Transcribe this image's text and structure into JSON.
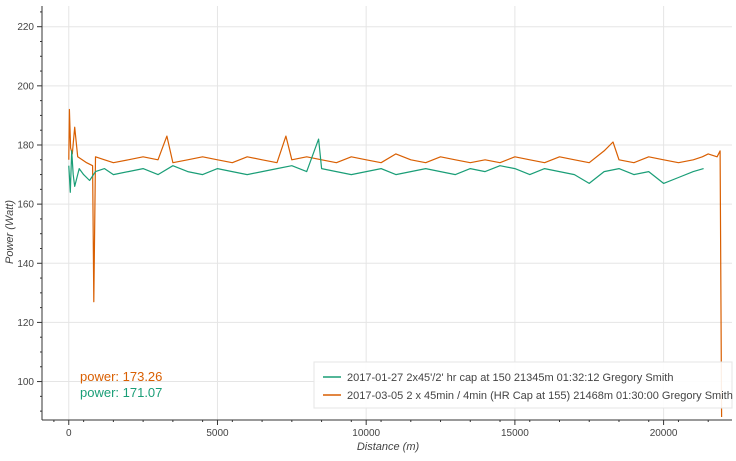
{
  "chart_data": {
    "type": "line",
    "xlabel": "Distance (m)",
    "ylabel": "Power (Watt)",
    "xlim": [
      -900,
      22300
    ],
    "ylim": [
      87,
      227
    ],
    "x_ticks": [
      0,
      5000,
      10000,
      15000,
      20000
    ],
    "y_ticks": [
      100,
      120,
      140,
      160,
      180,
      200,
      220
    ],
    "grid": true,
    "legend_position": "bottom-right",
    "series": [
      {
        "name": "2017-01-27 2x45'/2' hr cap at 150 21345m 01:32:12 Gregory Smith",
        "color": "#1a9e77",
        "x": [
          0,
          50,
          100,
          150,
          200,
          350,
          500,
          700,
          900,
          1200,
          1500,
          2000,
          2500,
          3000,
          3500,
          4000,
          4500,
          5000,
          5500,
          6000,
          6500,
          7000,
          7500,
          8000,
          8400,
          8500,
          9000,
          9500,
          10000,
          10500,
          11000,
          11500,
          12000,
          12500,
          13000,
          13500,
          14000,
          14500,
          15000,
          15500,
          16000,
          16500,
          17000,
          17500,
          18000,
          18500,
          19000,
          19500,
          20000,
          20500,
          21000,
          21345
        ],
        "y": [
          173,
          164,
          178,
          170,
          166,
          172,
          170,
          168,
          171,
          172,
          170,
          171,
          172,
          170,
          173,
          171,
          170,
          172,
          171,
          170,
          171,
          172,
          173,
          171,
          182,
          172,
          171,
          170,
          171,
          172,
          170,
          171,
          172,
          171,
          170,
          172,
          171,
          173,
          172,
          170,
          172,
          171,
          170,
          167,
          171,
          172,
          170,
          171,
          167,
          169,
          171,
          172
        ],
        "mean": 171.07,
        "stat_label": "power: 171.07"
      },
      {
        "name": "2017-03-05 2 x 45min / 4min (HR Cap at 155) 21468m 01:30:00 Gregory Smith",
        "color": "#d95f02",
        "x": [
          0,
          20,
          60,
          120,
          200,
          300,
          450,
          600,
          800,
          840,
          900,
          1200,
          1500,
          2000,
          2500,
          3000,
          3300,
          3500,
          4000,
          4500,
          5000,
          5500,
          6000,
          6500,
          7000,
          7300,
          7500,
          8000,
          8500,
          9000,
          9500,
          10000,
          10500,
          11000,
          11500,
          12000,
          12500,
          13000,
          13500,
          14000,
          14500,
          15000,
          15500,
          16000,
          16500,
          17000,
          17500,
          18000,
          18300,
          18500,
          19000,
          19500,
          20000,
          20500,
          21000,
          21300,
          21500,
          21800,
          21900,
          21950
        ],
        "y": [
          175,
          192,
          179,
          177,
          186,
          176,
          175,
          174,
          173,
          127,
          176,
          175,
          174,
          175,
          176,
          175,
          183,
          174,
          175,
          176,
          175,
          174,
          176,
          175,
          174,
          183,
          175,
          176,
          175,
          174,
          176,
          175,
          174,
          177,
          175,
          174,
          176,
          175,
          174,
          175,
          174,
          176,
          175,
          174,
          176,
          175,
          174,
          178,
          181,
          175,
          174,
          176,
          175,
          174,
          175,
          176,
          177,
          176,
          178,
          88
        ],
        "mean": 173.26,
        "stat_label": "power: 173.26"
      }
    ]
  }
}
